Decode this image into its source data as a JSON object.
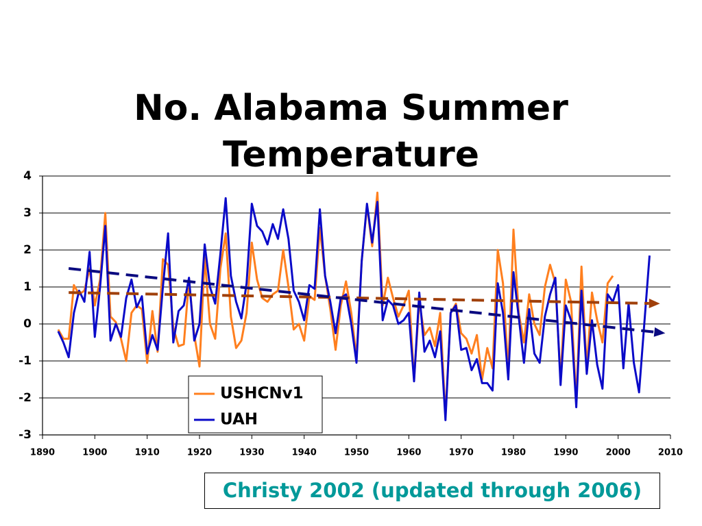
{
  "chart_data": {
    "type": "line",
    "title": "No. Alabama Summer Temperature",
    "annotation": "Christy 2002 (updated through 2006)",
    "x": [
      1893,
      1894,
      1895,
      1896,
      1897,
      1898,
      1899,
      1900,
      1901,
      1902,
      1903,
      1904,
      1905,
      1906,
      1907,
      1908,
      1909,
      1910,
      1911,
      1912,
      1913,
      1914,
      1915,
      1916,
      1917,
      1918,
      1919,
      1920,
      1921,
      1922,
      1923,
      1924,
      1925,
      1926,
      1927,
      1928,
      1929,
      1930,
      1931,
      1932,
      1933,
      1934,
      1935,
      1936,
      1937,
      1938,
      1939,
      1940,
      1941,
      1942,
      1943,
      1944,
      1945,
      1946,
      1947,
      1948,
      1949,
      1950,
      1951,
      1952,
      1953,
      1954,
      1955,
      1956,
      1957,
      1958,
      1959,
      1960,
      1961,
      1962,
      1963,
      1964,
      1965,
      1966,
      1967,
      1968,
      1969,
      1970,
      1971,
      1972,
      1973,
      1974,
      1975,
      1976,
      1977,
      1978,
      1979,
      1980,
      1981,
      1982,
      1983,
      1984,
      1985,
      1986,
      1987,
      1988,
      1989,
      1990,
      1991,
      1992,
      1993,
      1994,
      1995,
      1996,
      1997,
      1998,
      1999,
      2000,
      2001,
      2002,
      2003,
      2004,
      2005,
      2006
    ],
    "series": [
      {
        "name": "USHCNv1",
        "color": "#ff7f1e",
        "values": [
          -0.15,
          -0.4,
          -0.4,
          1.05,
          0.8,
          0.9,
          1.5,
          0.5,
          1.2,
          3.0,
          0.2,
          0.05,
          -0.4,
          -1.0,
          0.3,
          0.5,
          0.4,
          -1.05,
          0.35,
          -0.75,
          1.75,
          1.6,
          -0.1,
          -0.6,
          -0.55,
          1.2,
          -0.3,
          -1.15,
          1.8,
          0.0,
          -0.4,
          1.5,
          2.45,
          0.2,
          -0.65,
          -0.45,
          0.3,
          2.2,
          1.2,
          0.7,
          0.6,
          0.8,
          0.9,
          2.0,
          1.0,
          -0.15,
          0.0,
          -0.45,
          0.75,
          0.65,
          2.6,
          1.3,
          0.4,
          -0.7,
          0.5,
          1.15,
          0.3,
          -0.9,
          1.7,
          3.2,
          2.1,
          3.55,
          0.5,
          1.25,
          0.7,
          0.2,
          0.5,
          0.9,
          -1.5,
          0.6,
          -0.3,
          -0.1,
          -0.6,
          0.3,
          -2.5,
          0.3,
          0.55,
          -0.25,
          -0.4,
          -0.8,
          -0.3,
          -1.5,
          -0.65,
          -1.2,
          2.0,
          1.1,
          -1.3,
          2.55,
          0.3,
          -0.5,
          0.8,
          0.0,
          -0.3,
          1.0,
          1.6,
          1.1,
          -1.5,
          1.2,
          0.6,
          -2.1,
          1.55,
          -1.2,
          0.85,
          0.1,
          -0.5,
          1.1,
          1.3,
          null,
          null,
          null,
          null,
          null,
          null,
          null
        ]
      },
      {
        "name": "UAH",
        "color": "#0a0ac8",
        "values": [
          -0.2,
          -0.5,
          -0.9,
          0.3,
          0.9,
          0.6,
          1.95,
          -0.35,
          1.0,
          2.65,
          -0.45,
          0.0,
          -0.35,
          0.7,
          1.2,
          0.45,
          0.75,
          -0.8,
          -0.3,
          -0.7,
          1.0,
          2.45,
          -0.5,
          0.35,
          0.5,
          1.25,
          -0.45,
          0.0,
          2.15,
          1.0,
          0.55,
          1.9,
          3.4,
          1.3,
          0.6,
          0.15,
          1.1,
          3.25,
          2.65,
          2.5,
          2.15,
          2.7,
          2.3,
          3.1,
          2.3,
          0.9,
          0.6,
          0.1,
          1.05,
          0.95,
          3.1,
          1.3,
          0.6,
          -0.25,
          0.7,
          0.8,
          0.0,
          -1.05,
          1.7,
          3.25,
          2.2,
          3.3,
          0.1,
          0.65,
          0.5,
          0.0,
          0.1,
          0.3,
          -1.55,
          0.85,
          -0.75,
          -0.45,
          -0.9,
          -0.2,
          -2.6,
          0.3,
          0.5,
          -0.7,
          -0.65,
          -1.25,
          -0.95,
          -1.6,
          -1.6,
          -1.8,
          1.1,
          0.3,
          -1.5,
          1.4,
          0.2,
          -1.05,
          0.4,
          -0.8,
          -1.05,
          0.2,
          0.8,
          1.25,
          -1.65,
          0.5,
          0.1,
          -2.25,
          0.9,
          -1.35,
          0.1,
          -1.1,
          -1.75,
          0.8,
          0.6,
          1.05,
          -1.2,
          0.55,
          -1.05,
          -1.85,
          0.0,
          1.85
        ]
      }
    ],
    "trends": [
      {
        "color": "#a0400a",
        "x": [
          1895,
          2008
        ],
        "values": [
          0.85,
          0.55
        ]
      },
      {
        "color": "#0a0a80",
        "x": [
          1895,
          2009
        ],
        "values": [
          1.5,
          -0.25
        ]
      }
    ],
    "xlim": [
      1890,
      2010
    ],
    "xticks": [
      1890,
      1900,
      1910,
      1920,
      1930,
      1940,
      1950,
      1960,
      1970,
      1980,
      1990,
      2000,
      2010
    ],
    "ylim": [
      -3,
      4
    ],
    "yticks": [
      -3,
      -2,
      -1,
      0,
      1,
      2,
      3,
      4
    ],
    "grid": true
  }
}
